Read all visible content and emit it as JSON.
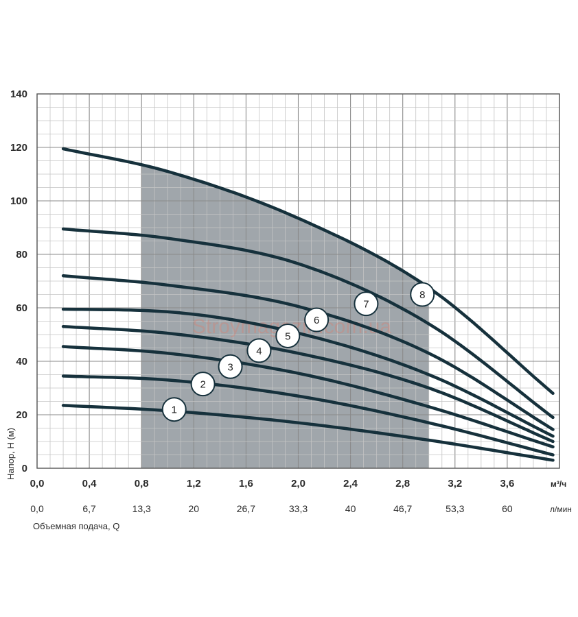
{
  "chart_data": {
    "type": "line",
    "ylabel": "Напор, H (м)",
    "xlabel": "Объемная подача, Q",
    "x_unit": "м³/ч",
    "x2_unit": "л/мин",
    "xlim": [
      0,
      4.0
    ],
    "ylim": [
      0,
      140
    ],
    "x_ticks": [
      "0,0",
      "0,4",
      "0,8",
      "1,2",
      "1,6",
      "2,0",
      "2,4",
      "2,8",
      "3,2",
      "3,6"
    ],
    "x2_ticks": [
      "0,0",
      "6,7",
      "13,3",
      "20",
      "26,7",
      "33,3",
      "40",
      "46,7",
      "53,3",
      "60"
    ],
    "y_ticks": [
      "0",
      "20",
      "40",
      "60",
      "80",
      "100",
      "120",
      "140"
    ],
    "grid": true,
    "recommended_range": [
      0.8,
      3.0
    ],
    "watermark": "Stroymagazin.com.ua",
    "series": [
      {
        "name": "1",
        "x": [
          0.2,
          1.0,
          2.0,
          3.0,
          3.95
        ],
        "y": [
          23.5,
          21.5,
          17,
          10.5,
          3
        ],
        "label_x": 1.05,
        "label_y": 22
      },
      {
        "name": "2",
        "x": [
          0.2,
          1.0,
          2.0,
          3.0,
          3.95
        ],
        "y": [
          34.5,
          33,
          27,
          17,
          5
        ],
        "label_x": 1.27,
        "label_y": 31.5
      },
      {
        "name": "3",
        "x": [
          0.2,
          1.0,
          2.0,
          3.0,
          3.95
        ],
        "y": [
          45.5,
          43,
          35.5,
          23,
          8
        ],
        "label_x": 1.48,
        "label_y": 38
      },
      {
        "name": "4",
        "x": [
          0.2,
          1.0,
          2.0,
          3.0,
          3.95
        ],
        "y": [
          53,
          50.5,
          43,
          30,
          10
        ],
        "label_x": 1.7,
        "label_y": 44
      },
      {
        "name": "5",
        "x": [
          0.2,
          1.0,
          2.0,
          3.0,
          3.95
        ],
        "y": [
          59.5,
          58.5,
          50.5,
          35,
          12
        ],
        "label_x": 1.92,
        "label_y": 49.5
      },
      {
        "name": "6",
        "x": [
          0.2,
          1.0,
          2.0,
          3.0,
          3.95
        ],
        "y": [
          72,
          68.5,
          60.5,
          43,
          14.5
        ],
        "label_x": 2.14,
        "label_y": 55.5
      },
      {
        "name": "7",
        "x": [
          0.2,
          1.0,
          2.0,
          3.0,
          3.95
        ],
        "y": [
          89.5,
          86,
          76.5,
          54,
          19
        ],
        "label_x": 2.52,
        "label_y": 61.5
      },
      {
        "name": "8",
        "x": [
          0.2,
          1.0,
          2.0,
          3.0,
          3.95
        ],
        "y": [
          119.5,
          111,
          93.5,
          67.5,
          28
        ],
        "label_x": 2.95,
        "label_y": 65
      }
    ]
  }
}
